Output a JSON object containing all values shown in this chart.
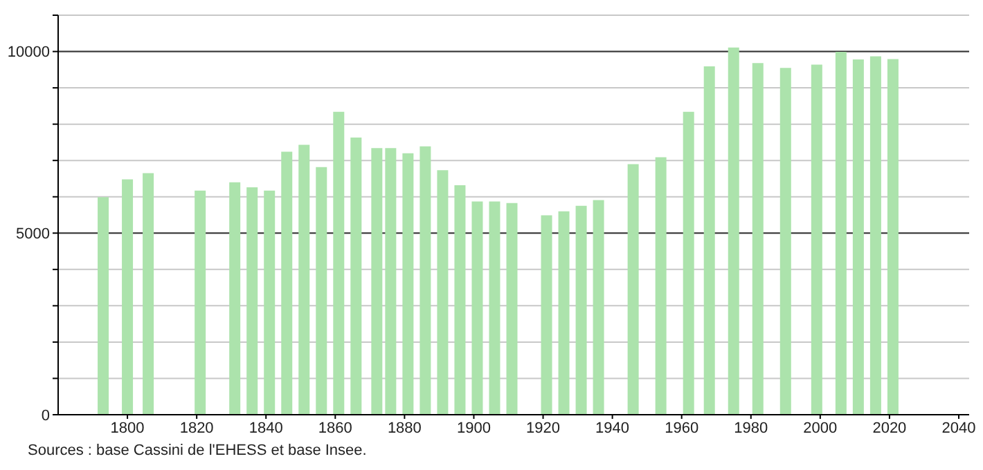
{
  "chart_data": {
    "type": "bar",
    "color": "#ace3ac",
    "x": [
      1793,
      1800,
      1806,
      1821,
      1831,
      1836,
      1841,
      1846,
      1851,
      1856,
      1861,
      1866,
      1872,
      1876,
      1881,
      1886,
      1891,
      1896,
      1901,
      1906,
      1911,
      1921,
      1926,
      1931,
      1936,
      1946,
      1954,
      1962,
      1968,
      1975,
      1982,
      1990,
      1999,
      2006,
      2011,
      2016,
      2021
    ],
    "values": [
      5990,
      6480,
      6650,
      6170,
      6400,
      6260,
      6170,
      7240,
      7430,
      6820,
      8340,
      7630,
      7340,
      7340,
      7200,
      7390,
      6730,
      6320,
      5870,
      5870,
      5830,
      5490,
      5600,
      5750,
      5910,
      6900,
      7090,
      8340,
      9590,
      10110,
      9680,
      9550,
      9640,
      9990,
      9780,
      9870,
      9790
    ],
    "xlim": [
      1780,
      2043
    ],
    "xticks": [
      1800,
      1820,
      1840,
      1860,
      1880,
      1900,
      1920,
      1940,
      1960,
      1980,
      2000,
      2020,
      2040
    ],
    "ylim": [
      0,
      11000
    ],
    "yticks": [
      0,
      {
        "value": 1000,
        "label": null
      },
      {
        "value": 2000,
        "label": null
      },
      {
        "value": 3000,
        "label": null
      },
      {
        "value": 4000,
        "label": null
      },
      5000,
      {
        "value": 6000,
        "label": null
      },
      {
        "value": 7000,
        "label": null
      },
      {
        "value": 8000,
        "label": null
      },
      {
        "value": 9000,
        "label": null
      },
      10000,
      {
        "value": 11000,
        "label": null
      }
    ],
    "grid": "y",
    "annotations": [
      "Sources : base Cassini de l'EHESS et base Insee."
    ]
  }
}
